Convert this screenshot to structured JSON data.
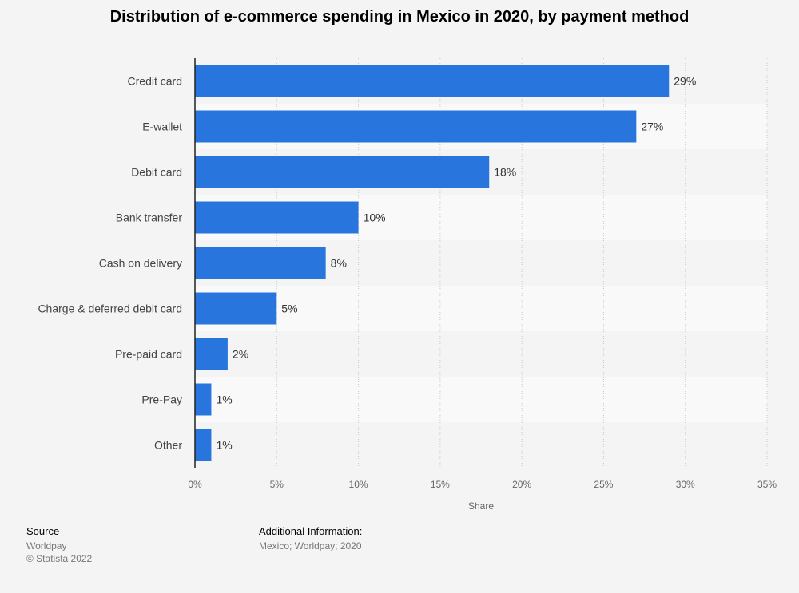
{
  "chart_data": {
    "type": "bar",
    "orientation": "horizontal",
    "title": "Distribution of e-commerce spending in Mexico in 2020, by payment method",
    "categories": [
      "Credit card",
      "E-wallet",
      "Debit card",
      "Bank transfer",
      "Cash on delivery",
      "Charge & deferred debit card",
      "Pre-paid card",
      "Pre-Pay",
      "Other"
    ],
    "values": [
      29,
      27,
      18,
      10,
      8,
      5,
      2,
      1,
      1
    ],
    "value_labels": [
      "29%",
      "27%",
      "18%",
      "10%",
      "8%",
      "5%",
      "2%",
      "1%",
      "1%"
    ],
    "xlabel": "Share",
    "ylabel": "",
    "xlim": [
      0,
      35
    ],
    "x_ticks": [
      "0%",
      "5%",
      "10%",
      "15%",
      "20%",
      "25%",
      "30%",
      "35%"
    ],
    "grid": true,
    "bar_color": "#2876dd"
  },
  "footer": {
    "source_heading": "Source",
    "source_name": "Worldpay",
    "copyright": "© Statista 2022",
    "info_heading": "Additional Information:",
    "info_text": "Mexico; Worldpay; 2020"
  },
  "colors": {
    "background": "#f4f4f4",
    "bar": "#2876dd",
    "band_even": "#f4f4f4",
    "band_odd": "#f9f9f9"
  }
}
